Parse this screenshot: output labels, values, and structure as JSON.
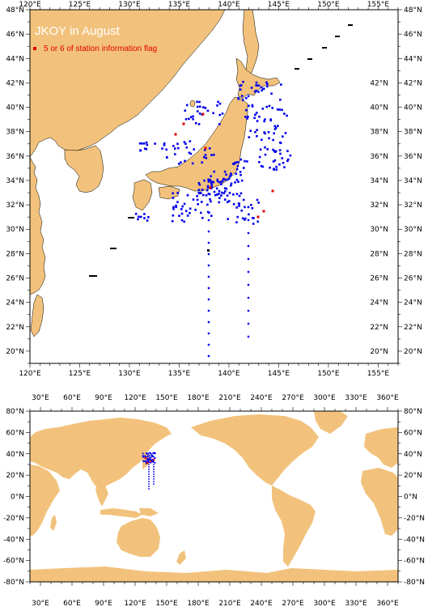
{
  "title": "JKOY in August",
  "legend": {
    "label": "5 or 6 of station information flag",
    "color": "#e00000"
  },
  "colors": {
    "land": "#f2c27c",
    "ocean": "#ffffff",
    "station": "#0000ee",
    "flagged": "#e00000",
    "frame": "#000000"
  },
  "regional_map": {
    "lon_range": [
      120,
      157
    ],
    "lat_range": [
      19,
      48
    ],
    "top_lon_labels": [
      "120°E",
      "125°E",
      "130°E",
      "135°E",
      "140°E",
      "145°E",
      "150°E",
      "155°E"
    ],
    "bottom_lon_labels": [
      "120°E",
      "125°E",
      "130°E",
      "135°E",
      "140°E",
      "145°E",
      "150°E",
      "155°E"
    ],
    "left_lat_labels": [
      "48°N",
      "46°N",
      "44°N",
      "42°N",
      "40°N",
      "38°N",
      "36°N",
      "34°N",
      "32°N",
      "30°N",
      "28°N",
      "26°N",
      "24°N",
      "22°N",
      "20°N"
    ],
    "inner_lat_labels": [
      "42°N",
      "40°N",
      "38°N",
      "36°N",
      "34°N",
      "32°N",
      "30°N",
      "28°N",
      "26°N",
      "24°N",
      "22°N",
      "20°N"
    ],
    "right_lat_labels": [
      "48°N",
      "46°N",
      "44°N",
      "42°N",
      "40°N",
      "38°N",
      "36°N",
      "34°N",
      "32°N",
      "30°N",
      "28°N",
      "26°N",
      "24°N",
      "22°N",
      "20°N"
    ]
  },
  "global_map": {
    "lon_range": [
      20,
      370
    ],
    "lat_range": [
      -80,
      80
    ],
    "top_lon_labels": [
      "30°E",
      "60°E",
      "90°E",
      "120°E",
      "150°E",
      "180°E",
      "210°E",
      "240°E",
      "270°E",
      "300°E",
      "330°E",
      "360°E"
    ],
    "bottom_lon_labels": [
      "30°E",
      "60°E",
      "90°E",
      "120°E",
      "150°E",
      "180°E",
      "210°E",
      "240°E",
      "270°E",
      "300°E",
      "330°E",
      "360°E"
    ],
    "left_lat_labels": [
      "80°N",
      "60°N",
      "40°N",
      "20°N",
      "0°N",
      "-20°N",
      "-40°N",
      "-60°N",
      "-80°N"
    ],
    "right_lat_labels": [
      "80°N",
      "60°N",
      "40°N",
      "20°N",
      "0°N",
      "-20°N",
      "-40°N",
      "-60°N",
      "-80°N"
    ]
  }
}
